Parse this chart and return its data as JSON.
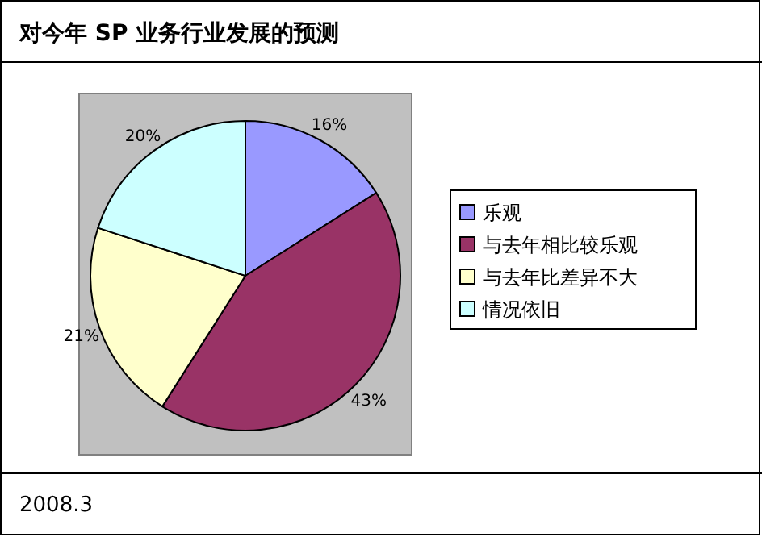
{
  "chart_data": {
    "type": "pie",
    "title": "对今年 SP 业务行业发展的预测",
    "categories": [
      "乐观",
      "与去年相比较乐观",
      "与去年比差异不大",
      "情况依旧"
    ],
    "values": [
      16,
      43,
      21,
      20
    ],
    "value_labels": [
      "16%",
      "43%",
      "21%",
      "20%"
    ],
    "colors": [
      "#9999ff",
      "#993366",
      "#ffffcc",
      "#ccffff"
    ],
    "legend": "right",
    "annotations": [
      "2008.3"
    ]
  }
}
